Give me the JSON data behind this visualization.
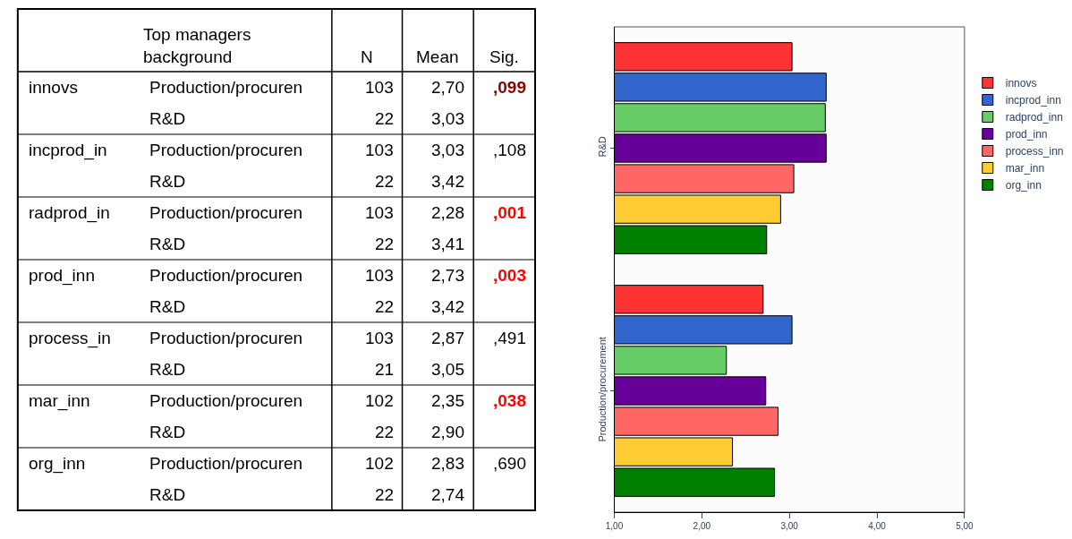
{
  "chart_data": [
    {
      "type": "other",
      "annotations": [
        "Top managers background",
        "N",
        "Mean",
        "Sig.",
        "innovs",
        "Production/procuren",
        "103",
        "2,70",
        ",099",
        "R&D",
        "22",
        "3,03",
        "incprod_in",
        "Production/procuren",
        "103",
        "3,03",
        ",108",
        "R&D",
        "22",
        "3,42",
        "radprod_in",
        "Production/procuren",
        "103",
        "2,28",
        ",001",
        "R&D",
        "22",
        "3,41",
        "prod_inn",
        "Production/procuren",
        "103",
        "2,73",
        ",003",
        "R&D",
        "22",
        "3,42",
        "process_in",
        "Production/procuren",
        "103",
        "2,87",
        ",491",
        "R&D",
        "21",
        "3,05",
        "mar_inn",
        "Production/procuren",
        "102",
        "2,35",
        ",038",
        "R&D",
        "22",
        "2,90",
        "org_inn",
        "Production/procuren",
        "102",
        "2,83",
        ",690",
        "R&D",
        "22",
        "2,74"
      ]
    },
    {
      "type": "bar",
      "orientation": "horizontal",
      "categories": [
        "R&D",
        "Production/procurement"
      ],
      "series": [
        {
          "name": "innovs",
          "color": "#ff3333",
          "values": [
            3.03,
            2.7
          ]
        },
        {
          "name": "incprod_inn",
          "color": "#3366cc",
          "values": [
            3.42,
            3.03
          ]
        },
        {
          "name": "radprod_inn",
          "color": "#66cc66",
          "values": [
            3.41,
            2.28
          ]
        },
        {
          "name": "prod_inn",
          "color": "#660099",
          "values": [
            3.42,
            2.73
          ]
        },
        {
          "name": "process_inn",
          "color": "#ff6666",
          "values": [
            3.05,
            2.87
          ]
        },
        {
          "name": "mar_inn",
          "color": "#ffcc33",
          "values": [
            2.9,
            2.35
          ]
        },
        {
          "name": "org_inn",
          "color": "#008000",
          "values": [
            2.74,
            2.83
          ]
        }
      ],
      "xlim": [
        1,
        5
      ],
      "xticks": [
        {
          "value": 1,
          "label": "1,00"
        },
        {
          "value": 2,
          "label": "2,00"
        },
        {
          "value": 3,
          "label": "3,00"
        },
        {
          "value": 4,
          "label": "4,00"
        },
        {
          "value": 5,
          "label": "5,00"
        }
      ],
      "grid": false,
      "legend": "top right"
    }
  ]
}
